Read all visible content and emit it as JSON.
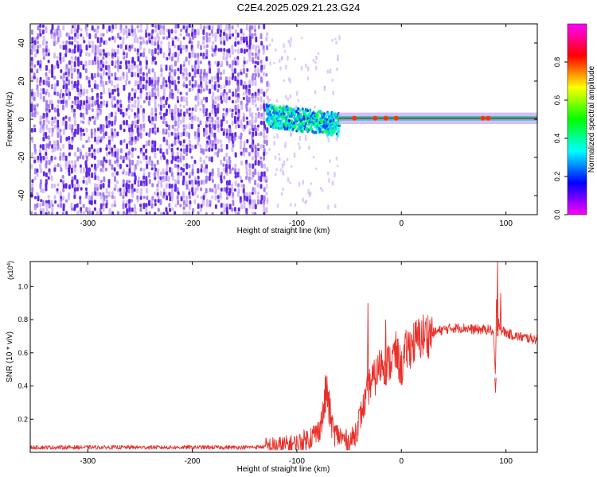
{
  "title": "C2E4.2025.029.21.23.G24",
  "chart_data": [
    {
      "type": "heatmap",
      "name": "spectrogram",
      "xlabel": "Height of straight line (km)",
      "ylabel": "Frequency (Hz)",
      "xlim": [
        -355,
        130
      ],
      "ylim": [
        -50,
        50
      ],
      "x_ticks": [
        -300,
        -200,
        -100,
        0,
        100
      ],
      "x_tick_labels": [
        "-300",
        "-200",
        "-100",
        "0",
        "100"
      ],
      "y_ticks": [
        -40,
        -20,
        0,
        20,
        40
      ],
      "y_tick_labels": [
        "-40",
        "-20",
        "0",
        "20",
        "40"
      ],
      "colorbar": {
        "label": "Normalized spectral amplitude",
        "range": [
          0.0,
          1.0
        ],
        "ticks": [
          0.0,
          0.2,
          0.4,
          0.6,
          0.8
        ],
        "tick_labels": [
          "0.0",
          "0.2",
          "0.4",
          "0.6",
          "0.8"
        ],
        "colormap": [
          "#ff00ff",
          "#0000ff",
          "#00ffff",
          "#00ff00",
          "#ffff00",
          "#ff0000",
          "#ff00ff"
        ]
      },
      "regions": [
        {
          "name": "noise",
          "x": [
            -355,
            -130
          ],
          "freq": [
            -50,
            50
          ],
          "amplitude": 0.15
        },
        {
          "name": "signal-onset",
          "x": [
            -130,
            -60
          ],
          "freq_center": 2,
          "freq_halfwidth": 6,
          "amplitude": 0.35
        },
        {
          "name": "carrier",
          "x": [
            -60,
            130
          ],
          "freq_center": 0.5,
          "freq_halfwidth": 3,
          "amplitude": 0.85
        }
      ]
    },
    {
      "type": "line",
      "name": "snr",
      "xlabel": "Height of straight line (km)",
      "ylabel": "SNR (10 * v/v)",
      "y_multiplier": "(x10",
      "y_multiplier_exp": "4",
      "y_multiplier_close": ")",
      "xlim": [
        -355,
        130
      ],
      "ylim": [
        0,
        1.15
      ],
      "x_ticks": [
        -300,
        -200,
        -100,
        0,
        100
      ],
      "x_tick_labels": [
        "-300",
        "-200",
        "-100",
        "0",
        "100"
      ],
      "y_ticks": [
        0.2,
        0.4,
        0.6,
        0.8,
        1.0
      ],
      "y_tick_labels": [
        "0.2",
        "0.4",
        "0.6",
        "0.8",
        "1.0"
      ],
      "color": "#e8302a",
      "series": [
        {
          "name": "SNR",
          "x": [
            -355,
            -300,
            -250,
            -200,
            -150,
            -120,
            -100,
            -90,
            -80,
            -75,
            -72,
            -70,
            -68,
            -65,
            -60,
            -55,
            -50,
            -45,
            -40,
            -35,
            -30,
            -25,
            -22,
            -18,
            -15,
            -10,
            -5,
            0,
            5,
            10,
            20,
            30,
            40,
            50,
            60,
            70,
            80,
            85,
            88,
            90,
            91,
            92,
            93,
            95,
            100,
            110,
            120,
            130
          ],
          "y": [
            0.03,
            0.03,
            0.03,
            0.03,
            0.03,
            0.035,
            0.05,
            0.08,
            0.12,
            0.22,
            0.38,
            0.3,
            0.22,
            0.12,
            0.1,
            0.08,
            0.06,
            0.1,
            0.2,
            0.3,
            0.42,
            0.45,
            0.5,
            0.55,
            0.52,
            0.55,
            0.6,
            0.5,
            0.62,
            0.65,
            0.7,
            0.72,
            0.74,
            0.75,
            0.75,
            0.74,
            0.74,
            0.74,
            0.72,
            0.45,
            0.95,
            0.7,
            0.8,
            0.74,
            0.72,
            0.7,
            0.69,
            0.68
          ]
        }
      ],
      "spikes": [
        {
          "x": -71,
          "y": 0.42
        },
        {
          "x": -32,
          "y": 0.9
        },
        {
          "x": -15,
          "y": 0.8
        },
        {
          "x": -6,
          "y": 0.68
        },
        {
          "x": 90,
          "y": 0.36
        },
        {
          "x": 92,
          "y": 1.16
        },
        {
          "x": 95,
          "y": 0.96
        }
      ]
    }
  ]
}
